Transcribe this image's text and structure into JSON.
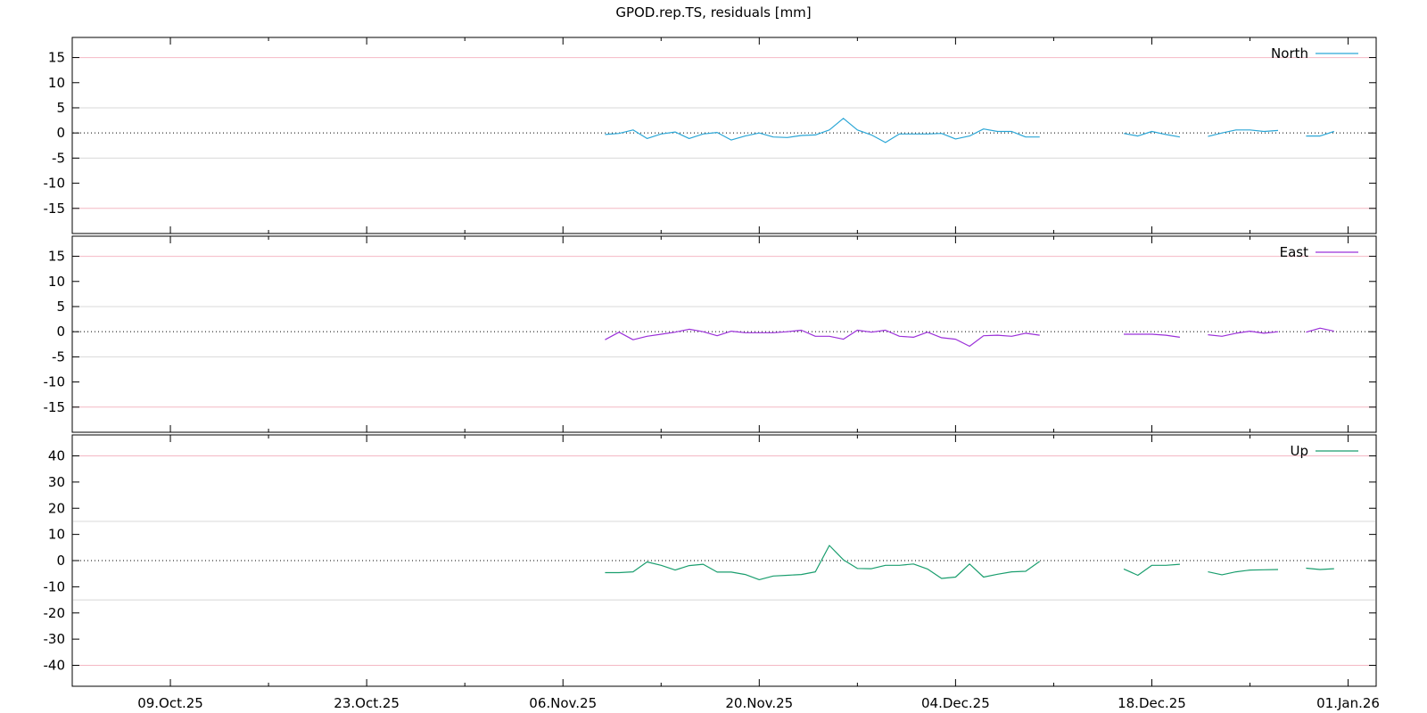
{
  "title": "GPOD.rep.TS, residuals [mm]",
  "x_tick_labels": [
    "09.Oct.25",
    "23.Oct.25",
    "06.Nov.25",
    "20.Nov.25",
    "04.Dec.25",
    "18.Dec.25",
    "01.Jan.26"
  ],
  "colors": {
    "North": "#2aa6d6",
    "East": "#9b30d9",
    "Up": "#1a9e6e",
    "zero_line": "#000000",
    "inner_band": "#d8d8d8",
    "outer_band": "#f4b8c4"
  },
  "chart_data": [
    {
      "type": "line",
      "legend": "North",
      "legend_position": "top-right",
      "x_range": [
        "2025-10-02",
        "2026-01-03"
      ],
      "ylim": [
        -20,
        19
      ],
      "y_ticks": [
        15,
        10,
        5,
        0,
        -5,
        -10,
        -15
      ],
      "inner_band": [
        -5,
        5
      ],
      "outer_band": [
        -15,
        15
      ],
      "series": [
        {
          "name": "North",
          "segments": [
            [
              [
                "2025-11-09",
                -0.3
              ],
              [
                "2025-11-10",
                -0.1
              ],
              [
                "2025-11-11",
                0.6
              ],
              [
                "2025-11-12",
                -1.1
              ],
              [
                "2025-11-13",
                -0.2
              ],
              [
                "2025-11-14",
                0.2
              ],
              [
                "2025-11-15",
                -1.1
              ],
              [
                "2025-11-16",
                -0.2
              ],
              [
                "2025-11-17",
                0.1
              ],
              [
                "2025-11-18",
                -1.4
              ],
              [
                "2025-11-19",
                -0.6
              ],
              [
                "2025-11-20",
                0.0
              ],
              [
                "2025-11-21",
                -0.8
              ],
              [
                "2025-11-22",
                -0.9
              ],
              [
                "2025-11-23",
                -0.5
              ],
              [
                "2025-11-24",
                -0.4
              ],
              [
                "2025-11-25",
                0.6
              ],
              [
                "2025-11-26",
                2.9
              ],
              [
                "2025-11-27",
                0.6
              ],
              [
                "2025-11-28",
                -0.4
              ],
              [
                "2025-11-29",
                -1.9
              ],
              [
                "2025-11-30",
                -0.2
              ],
              [
                "2025-12-01",
                -0.2
              ],
              [
                "2025-12-02",
                -0.2
              ],
              [
                "2025-12-03",
                -0.1
              ],
              [
                "2025-12-04",
                -1.2
              ],
              [
                "2025-12-05",
                -0.6
              ],
              [
                "2025-12-06",
                0.8
              ],
              [
                "2025-12-07",
                0.3
              ],
              [
                "2025-12-08",
                0.3
              ],
              [
                "2025-12-09",
                -0.8
              ],
              [
                "2025-12-10",
                -0.8
              ]
            ],
            [
              [
                "2025-12-16",
                -0.1
              ],
              [
                "2025-12-17",
                -0.6
              ],
              [
                "2025-12-18",
                0.3
              ],
              [
                "2025-12-19",
                -0.3
              ],
              [
                "2025-12-20",
                -0.8
              ]
            ],
            [
              [
                "2025-12-22",
                -0.7
              ],
              [
                "2025-12-23",
                0.0
              ],
              [
                "2025-12-24",
                0.6
              ],
              [
                "2025-12-25",
                0.6
              ],
              [
                "2025-12-26",
                0.3
              ],
              [
                "2025-12-27",
                0.5
              ]
            ],
            [
              [
                "2025-12-29",
                -0.6
              ],
              [
                "2025-12-30",
                -0.6
              ],
              [
                "2025-12-31",
                0.3
              ]
            ]
          ]
        }
      ]
    },
    {
      "type": "line",
      "legend": "East",
      "legend_position": "top-right",
      "x_range": [
        "2025-10-02",
        "2026-01-03"
      ],
      "ylim": [
        -20,
        19
      ],
      "y_ticks": [
        15,
        10,
        5,
        0,
        -5,
        -10,
        -15
      ],
      "inner_band": [
        -5,
        5
      ],
      "outer_band": [
        -15,
        15
      ],
      "series": [
        {
          "name": "East",
          "segments": [
            [
              [
                "2025-11-09",
                -1.6
              ],
              [
                "2025-11-10",
                -0.1
              ],
              [
                "2025-11-11",
                -1.6
              ],
              [
                "2025-11-12",
                -0.9
              ],
              [
                "2025-11-13",
                -0.5
              ],
              [
                "2025-11-14",
                -0.1
              ],
              [
                "2025-11-15",
                0.5
              ],
              [
                "2025-11-16",
                0.0
              ],
              [
                "2025-11-17",
                -0.8
              ],
              [
                "2025-11-18",
                0.1
              ],
              [
                "2025-11-19",
                -0.2
              ],
              [
                "2025-11-20",
                -0.2
              ],
              [
                "2025-11-21",
                -0.2
              ],
              [
                "2025-11-22",
                0.0
              ],
              [
                "2025-11-23",
                0.3
              ],
              [
                "2025-11-24",
                -0.9
              ],
              [
                "2025-11-25",
                -0.9
              ],
              [
                "2025-11-26",
                -1.5
              ],
              [
                "2025-11-27",
                0.3
              ],
              [
                "2025-11-28",
                -0.1
              ],
              [
                "2025-11-29",
                0.3
              ],
              [
                "2025-11-30",
                -0.9
              ],
              [
                "2025-12-01",
                -1.1
              ],
              [
                "2025-12-02",
                -0.1
              ],
              [
                "2025-12-03",
                -1.2
              ],
              [
                "2025-12-04",
                -1.5
              ],
              [
                "2025-12-05",
                -2.9
              ],
              [
                "2025-12-06",
                -0.8
              ],
              [
                "2025-12-07",
                -0.7
              ],
              [
                "2025-12-08",
                -0.9
              ],
              [
                "2025-12-09",
                -0.3
              ],
              [
                "2025-12-10",
                -0.7
              ]
            ],
            [
              [
                "2025-12-16",
                -0.5
              ],
              [
                "2025-12-17",
                -0.5
              ],
              [
                "2025-12-18",
                -0.5
              ],
              [
                "2025-12-19",
                -0.7
              ],
              [
                "2025-12-20",
                -1.1
              ]
            ],
            [
              [
                "2025-12-22",
                -0.6
              ],
              [
                "2025-12-23",
                -0.9
              ],
              [
                "2025-12-24",
                -0.3
              ],
              [
                "2025-12-25",
                0.1
              ],
              [
                "2025-12-26",
                -0.3
              ],
              [
                "2025-12-27",
                0.0
              ]
            ],
            [
              [
                "2025-12-29",
                -0.1
              ],
              [
                "2025-12-30",
                0.7
              ],
              [
                "2025-12-31",
                0.1
              ]
            ]
          ]
        }
      ]
    },
    {
      "type": "line",
      "legend": "Up",
      "legend_position": "top-right",
      "x_range": [
        "2025-10-02",
        "2026-01-03"
      ],
      "ylim": [
        -48,
        48
      ],
      "y_ticks": [
        40,
        30,
        20,
        10,
        0,
        -10,
        -20,
        -30,
        -40
      ],
      "inner_band": [
        -15,
        15
      ],
      "outer_band": [
        -40,
        40
      ],
      "series": [
        {
          "name": "Up",
          "segments": [
            [
              [
                "2025-11-09",
                -4.6
              ],
              [
                "2025-11-10",
                -4.6
              ],
              [
                "2025-11-11",
                -4.3
              ],
              [
                "2025-11-12",
                -0.5
              ],
              [
                "2025-11-13",
                -1.8
              ],
              [
                "2025-11-14",
                -3.6
              ],
              [
                "2025-11-15",
                -1.9
              ],
              [
                "2025-11-16",
                -1.4
              ],
              [
                "2025-11-17",
                -4.4
              ],
              [
                "2025-11-18",
                -4.4
              ],
              [
                "2025-11-19",
                -5.3
              ],
              [
                "2025-11-20",
                -7.3
              ],
              [
                "2025-11-21",
                -5.9
              ],
              [
                "2025-11-22",
                -5.6
              ],
              [
                "2025-11-23",
                -5.3
              ],
              [
                "2025-11-24",
                -4.3
              ],
              [
                "2025-11-25",
                5.8
              ],
              [
                "2025-11-26",
                0.3
              ],
              [
                "2025-11-27",
                -3.0
              ],
              [
                "2025-11-28",
                -3.1
              ],
              [
                "2025-11-29",
                -1.8
              ],
              [
                "2025-11-30",
                -1.8
              ],
              [
                "2025-12-01",
                -1.3
              ],
              [
                "2025-12-02",
                -3.2
              ],
              [
                "2025-12-03",
                -6.8
              ],
              [
                "2025-12-04",
                -6.3
              ],
              [
                "2025-12-05",
                -1.3
              ],
              [
                "2025-12-06",
                -6.3
              ],
              [
                "2025-12-07",
                -5.2
              ],
              [
                "2025-12-08",
                -4.3
              ],
              [
                "2025-12-09",
                -4.1
              ],
              [
                "2025-12-10",
                -0.3
              ]
            ],
            [
              [
                "2025-12-16",
                -3.2
              ],
              [
                "2025-12-17",
                -5.6
              ],
              [
                "2025-12-18",
                -1.8
              ],
              [
                "2025-12-19",
                -1.8
              ],
              [
                "2025-12-20",
                -1.4
              ]
            ],
            [
              [
                "2025-12-22",
                -4.3
              ],
              [
                "2025-12-23",
                -5.4
              ],
              [
                "2025-12-24",
                -4.3
              ],
              [
                "2025-12-25",
                -3.6
              ],
              [
                "2025-12-26",
                -3.5
              ],
              [
                "2025-12-27",
                -3.4
              ]
            ],
            [
              [
                "2025-12-29",
                -2.9
              ],
              [
                "2025-12-30",
                -3.4
              ],
              [
                "2025-12-31",
                -3.1
              ]
            ]
          ]
        }
      ]
    }
  ]
}
